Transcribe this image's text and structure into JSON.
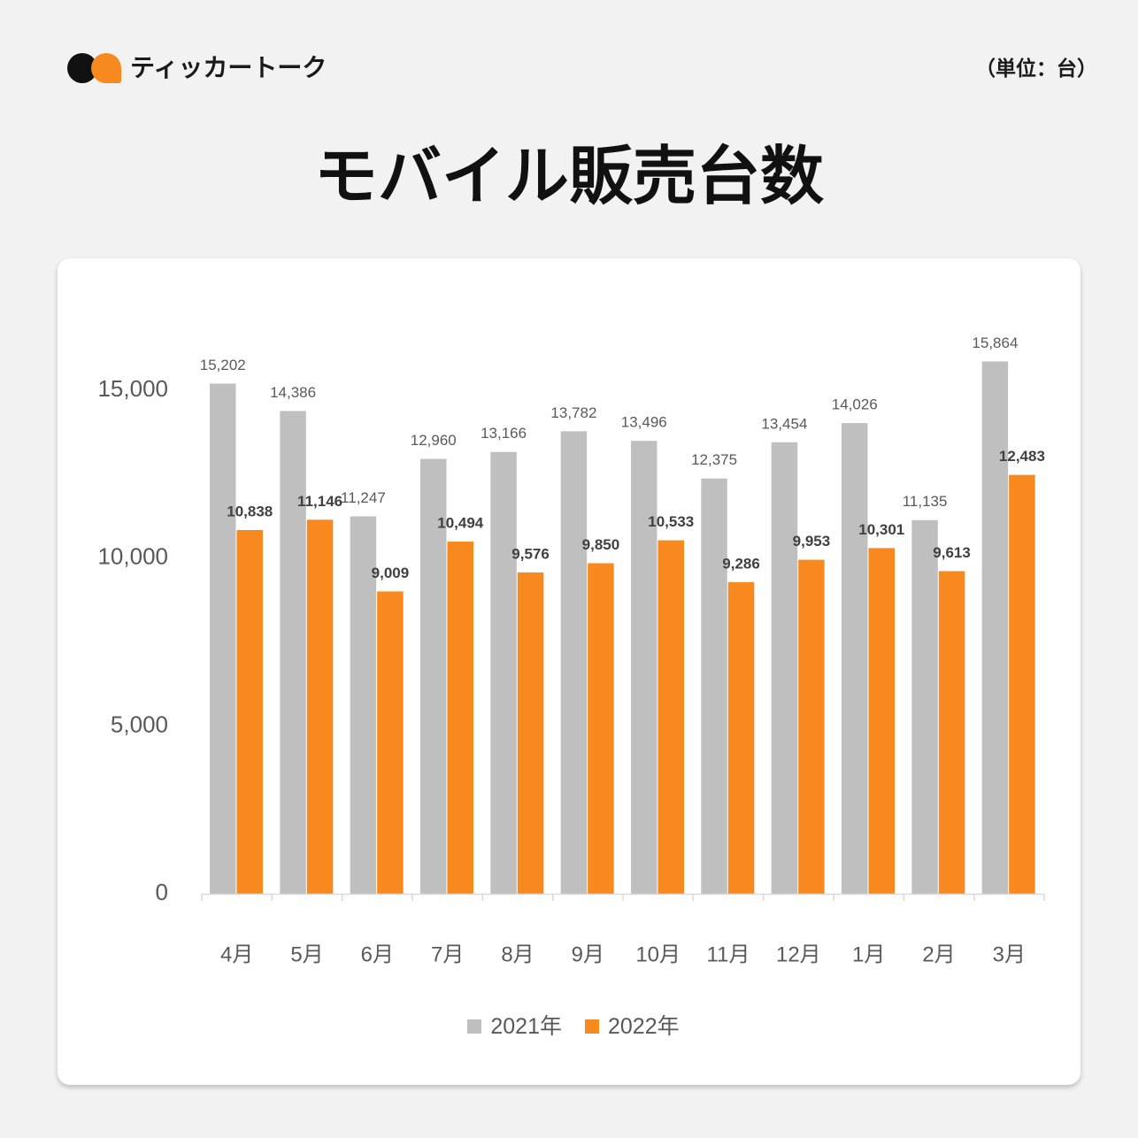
{
  "brand": {
    "name": "ティッカートーク"
  },
  "unit_label": "（単位：台）",
  "colors": {
    "background": "#f2f2f2",
    "card": "#ffffff",
    "title_text": "#111111",
    "label_gray": "#595959",
    "label_dark": "#404040",
    "axis_line": "#d9d9d9",
    "logo_black": "#111111",
    "logo_orange": "#f7891e"
  },
  "chart_data": {
    "type": "bar",
    "title": "モバイル販売台数",
    "xlabel": "",
    "ylabel": "",
    "categories": [
      "4月",
      "5月",
      "6月",
      "7月",
      "8月",
      "9月",
      "10月",
      "11月",
      "12月",
      "1月",
      "2月",
      "3月"
    ],
    "series": [
      {
        "name": "2021年",
        "color": "#bfbfbf",
        "values": [
          15202,
          14386,
          11247,
          12960,
          13166,
          13782,
          13496,
          12375,
          13454,
          14026,
          11135,
          15864
        ]
      },
      {
        "name": "2022年",
        "color": "#f7891e",
        "values": [
          10838,
          11146,
          9009,
          10494,
          9576,
          9850,
          10533,
          9286,
          9953,
          10301,
          9613,
          12483
        ]
      }
    ],
    "y_ticks": [
      0,
      5000,
      10000,
      15000
    ],
    "ylim": [
      0,
      16000
    ],
    "grid": false,
    "legend": "bottom-center",
    "data_labels": true
  }
}
